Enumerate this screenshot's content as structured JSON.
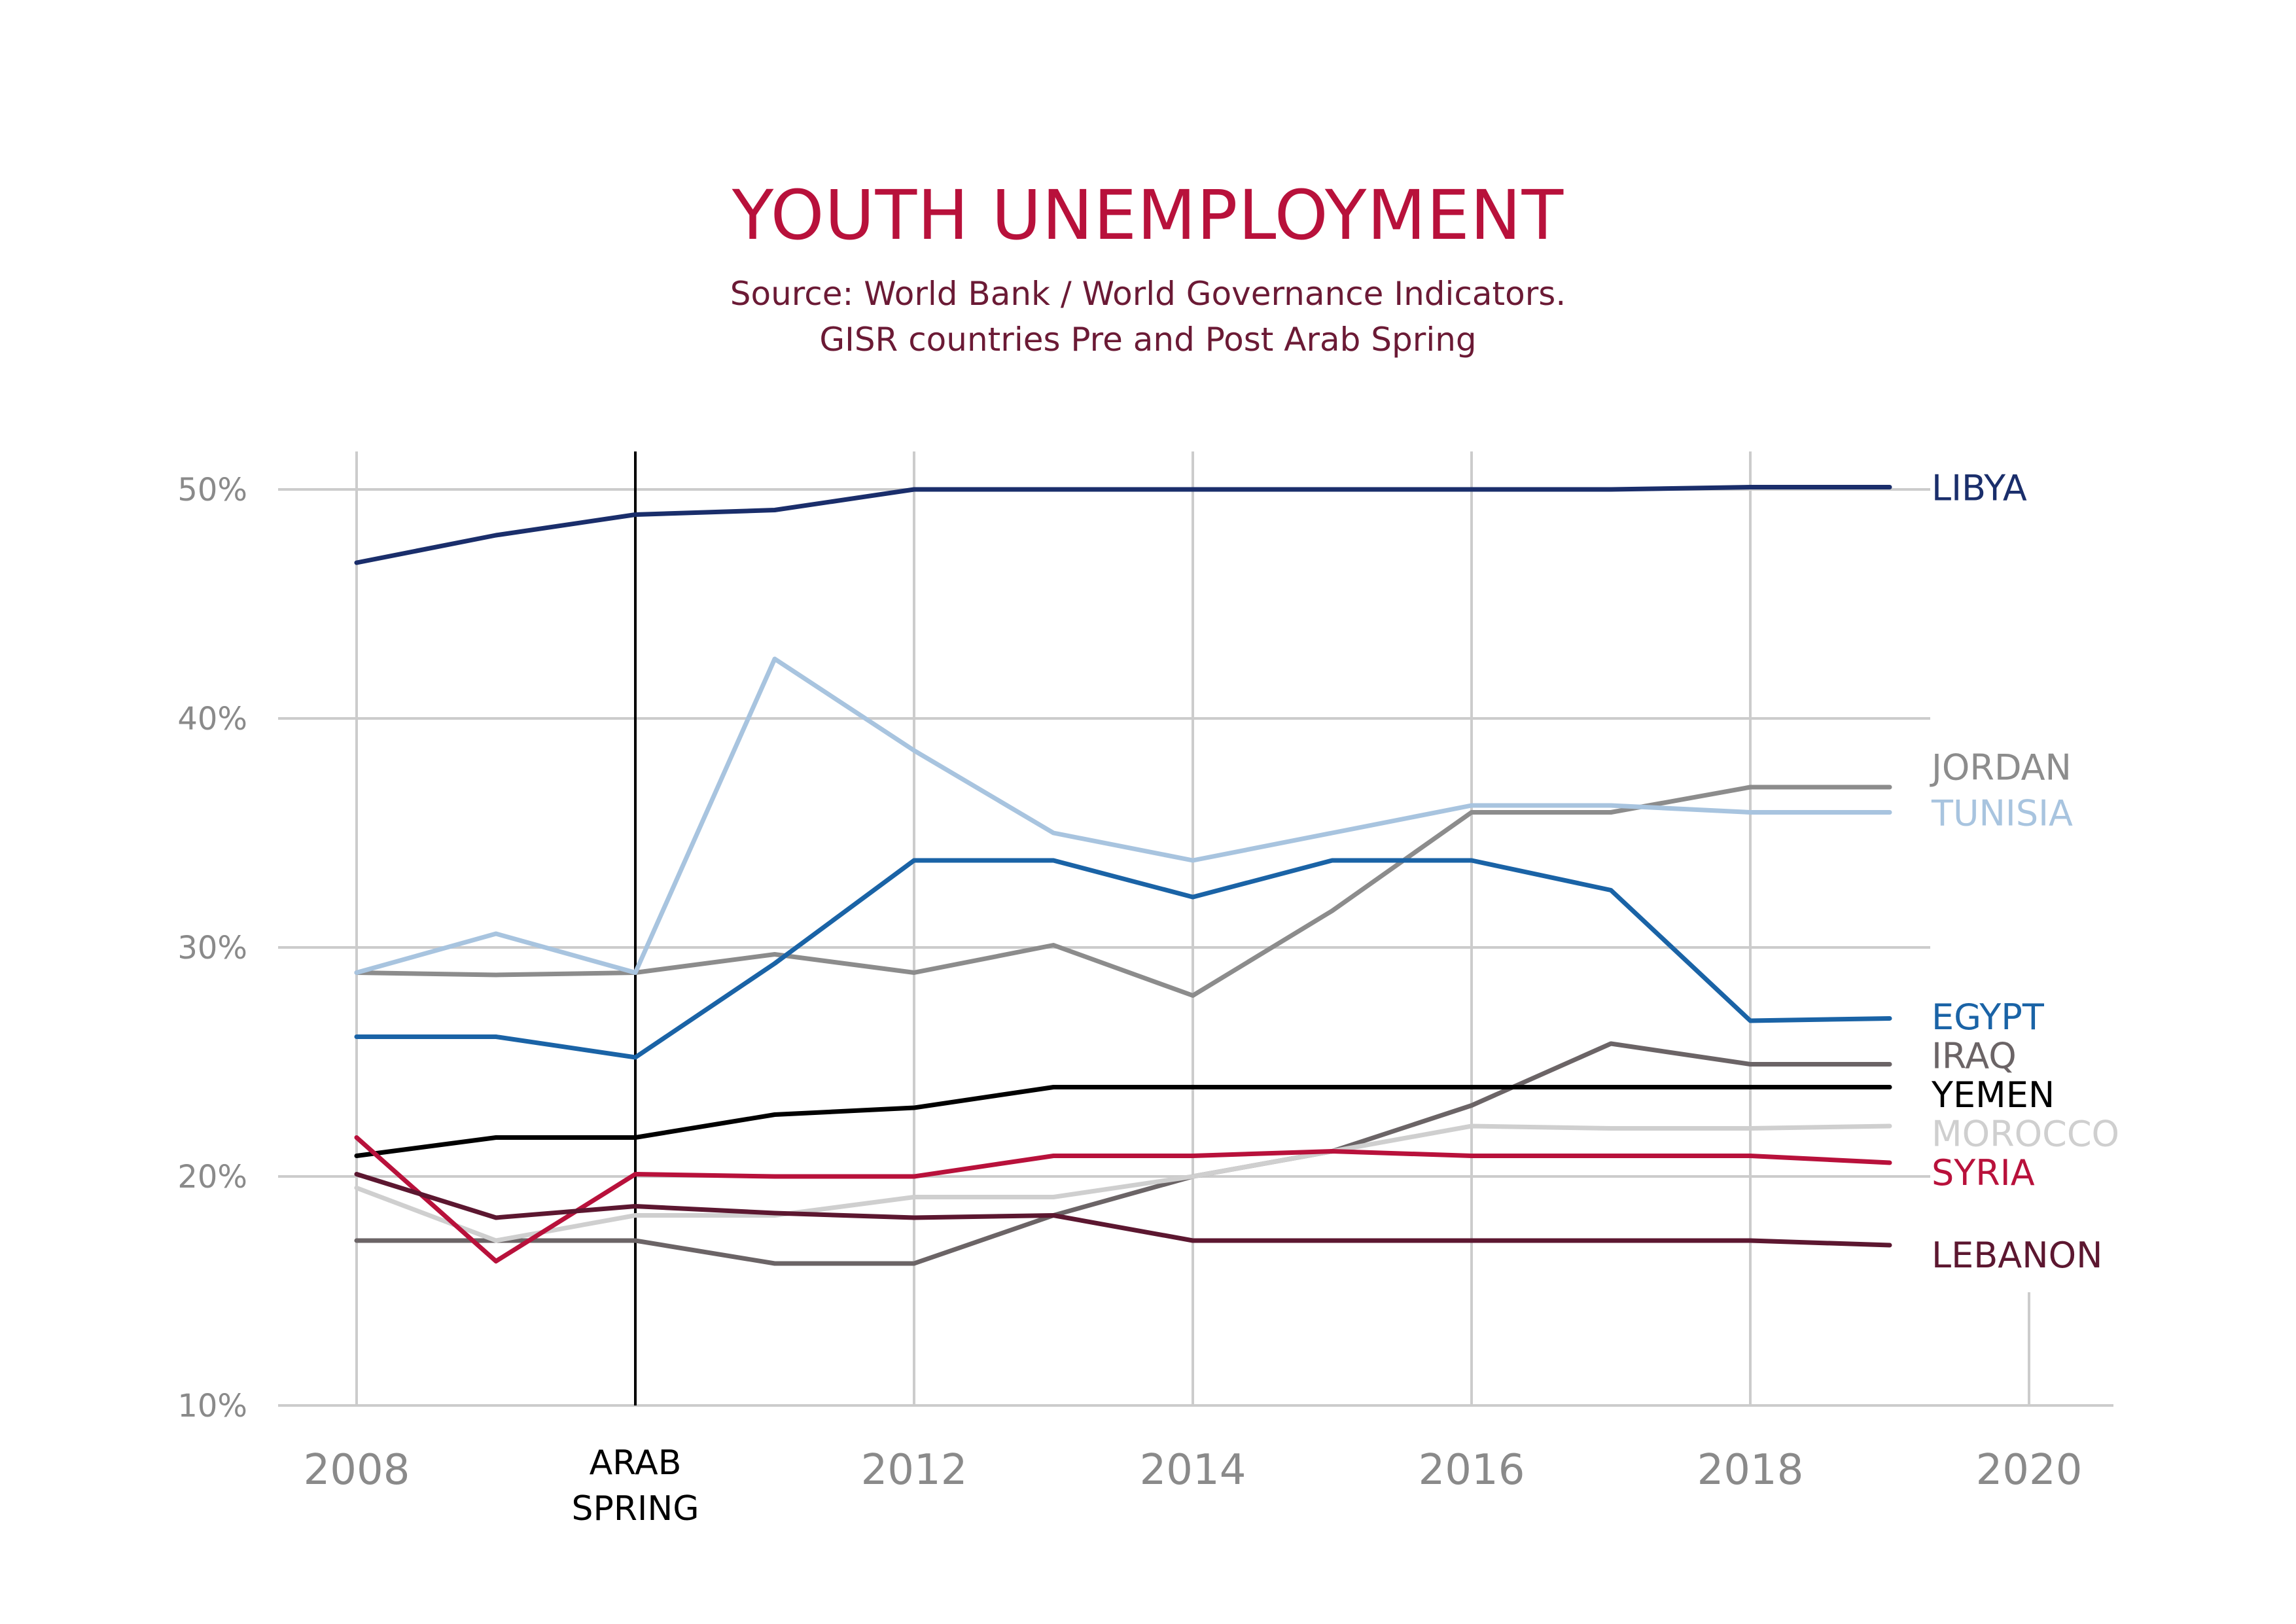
{
  "colors": {
    "title": "#b8113b",
    "subtitle": "#6b1a35",
    "grid": "#cccccc",
    "tick": "#8a8a8a",
    "marker": "#000000"
  },
  "chart_data": {
    "type": "line",
    "title": "YOUTH UNEMPLOYMENT",
    "subtitle": [
      "Source: World Bank / World Governance Indicators.",
      "GISR countries Pre and Post Arab Spring"
    ],
    "xlim": [
      2008,
      2020
    ],
    "ylim": [
      10,
      50
    ],
    "x_ticks": [
      2008,
      2012,
      2014,
      2016,
      2018,
      2020
    ],
    "x_tick_labels": [
      "2008",
      "2012",
      "2014",
      "2016",
      "2018",
      "2020"
    ],
    "y_ticks": [
      10,
      20,
      30,
      40,
      50
    ],
    "y_tick_labels": [
      "10%",
      "20%",
      "30%",
      "40%",
      "50%"
    ],
    "grid": true,
    "annotation": {
      "x": 2010,
      "label": [
        "ARAB",
        "SPRING"
      ]
    },
    "series": [
      {
        "name": "LIBYA",
        "color": "#1a2e6b",
        "x": [
          2008,
          2009,
          2010,
          2011,
          2012,
          2013,
          2014,
          2015,
          2016,
          2017,
          2018,
          2019
        ],
        "values": [
          46.8,
          48.0,
          48.9,
          49.1,
          50.0,
          50.0,
          50.0,
          50.0,
          50.0,
          50.0,
          50.1,
          50.1
        ]
      },
      {
        "name": "JORDAN",
        "color": "#8c8c8c",
        "x": [
          2008,
          2009,
          2010,
          2011,
          2012,
          2013,
          2014,
          2015,
          2016,
          2017,
          2018,
          2019
        ],
        "values": [
          28.9,
          28.8,
          28.9,
          29.7,
          28.9,
          30.1,
          27.9,
          31.6,
          35.9,
          35.9,
          37.0,
          37.0
        ]
      },
      {
        "name": "TUNISIA",
        "color": "#a8c4df",
        "x": [
          2008,
          2009,
          2010,
          2011,
          2012,
          2013,
          2014,
          2015,
          2016,
          2017,
          2018,
          2019
        ],
        "values": [
          28.9,
          30.6,
          28.9,
          42.6,
          38.6,
          35.0,
          33.8,
          35.0,
          36.2,
          36.2,
          35.9,
          35.9
        ]
      },
      {
        "name": "EGYPT",
        "color": "#1a63a6",
        "x": [
          2008,
          2009,
          2010,
          2011,
          2012,
          2013,
          2014,
          2015,
          2016,
          2017,
          2018,
          2019
        ],
        "values": [
          26.1,
          26.1,
          25.2,
          29.3,
          33.8,
          33.8,
          32.2,
          33.8,
          33.8,
          32.5,
          26.8,
          26.9
        ]
      },
      {
        "name": "IRAQ",
        "color": "#6b6466",
        "x": [
          2008,
          2009,
          2010,
          2011,
          2012,
          2013,
          2014,
          2015,
          2016,
          2017,
          2018,
          2019
        ],
        "values": [
          17.2,
          17.2,
          17.2,
          16.2,
          16.2,
          18.3,
          20.0,
          21.1,
          23.1,
          25.8,
          24.9,
          24.9
        ]
      },
      {
        "name": "YEMEN",
        "color": "#000000",
        "x": [
          2008,
          2009,
          2010,
          2011,
          2012,
          2013,
          2014,
          2015,
          2016,
          2017,
          2018,
          2019
        ],
        "values": [
          20.9,
          21.7,
          21.7,
          22.7,
          23.0,
          23.9,
          23.9,
          23.9,
          23.9,
          23.9,
          23.9,
          23.9
        ]
      },
      {
        "name": "MOROCCO",
        "color": "#cfcfcf",
        "x": [
          2008,
          2009,
          2010,
          2011,
          2012,
          2013,
          2014,
          2015,
          2016,
          2017,
          2018,
          2019
        ],
        "values": [
          19.5,
          17.2,
          18.3,
          18.3,
          19.1,
          19.1,
          20.0,
          21.1,
          22.2,
          22.1,
          22.1,
          22.2
        ]
      },
      {
        "name": "SYRIA",
        "color": "#b8113b",
        "x": [
          2008,
          2009,
          2010,
          2011,
          2012,
          2013,
          2014,
          2015,
          2016,
          2017,
          2018,
          2019
        ],
        "values": [
          21.7,
          16.3,
          20.1,
          20.0,
          20.0,
          20.9,
          20.9,
          21.1,
          20.9,
          20.9,
          20.9,
          20.6
        ]
      },
      {
        "name": "LEBANON",
        "color": "#5c1730",
        "x": [
          2008,
          2009,
          2010,
          2011,
          2012,
          2013,
          2014,
          2015,
          2016,
          2017,
          2018,
          2019
        ],
        "values": [
          20.1,
          18.2,
          18.7,
          18.4,
          18.2,
          18.3,
          17.2,
          17.2,
          17.2,
          17.2,
          17.2,
          17.0
        ]
      }
    ]
  }
}
